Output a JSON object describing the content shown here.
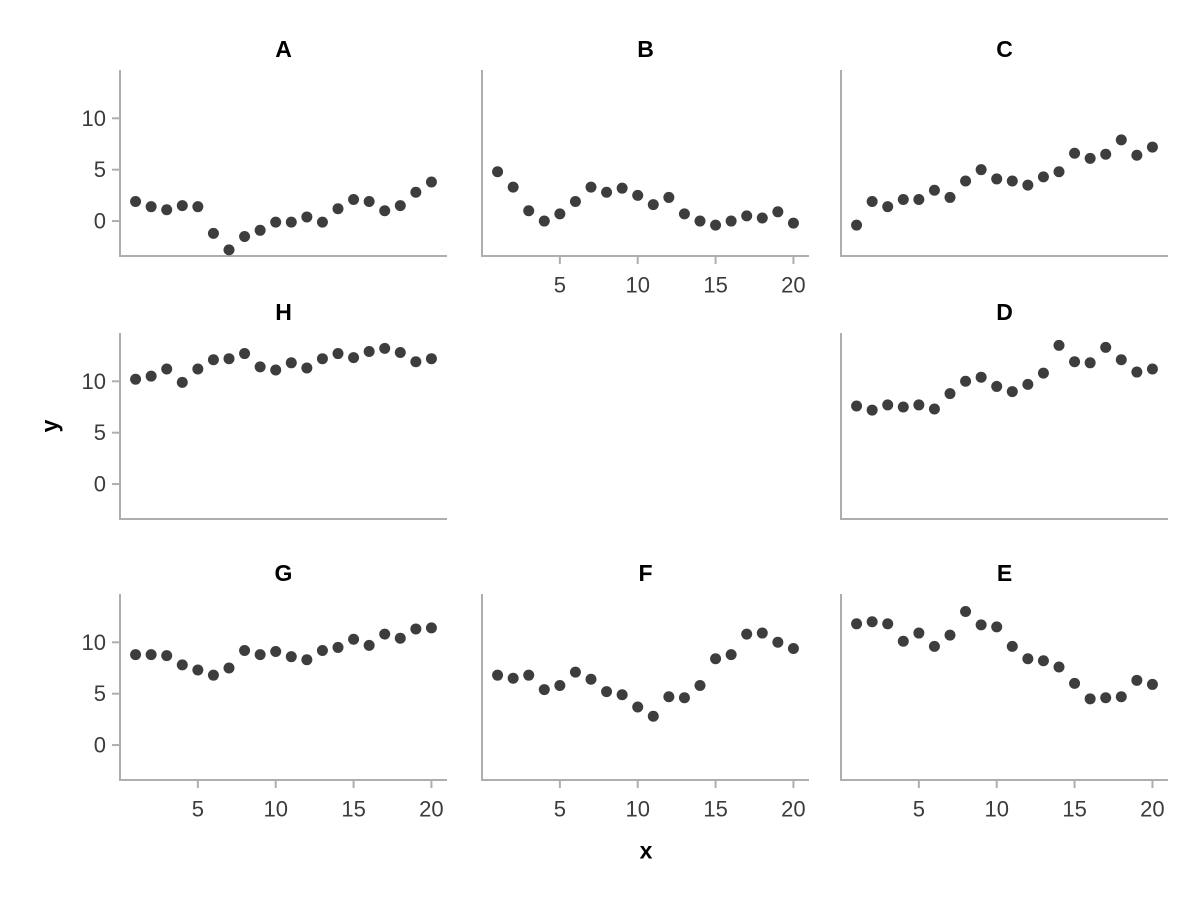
{
  "figure": {
    "background": "#ffffff",
    "point_color": "#3d3d3d",
    "axis_color": "#aeaeae",
    "tick_label_color": "#3c3c3c",
    "title_color": "#000000"
  },
  "chart_data": {
    "type": "scatter",
    "title": "",
    "xlabel": "x",
    "ylabel": "y",
    "layout_hint": "facet grid 3 rows x 3 cols, middle cell (row 2, col 2) empty; y tick labels only on left column panels; x tick labels under panels B, G, F, E; no gridlines; no legend",
    "x_domain": [
      0,
      21
    ],
    "y_domain": [
      -3.4,
      14.7
    ],
    "x_ticks": [
      5,
      10,
      15,
      20
    ],
    "y_ticks": [
      0,
      5,
      10
    ],
    "x": [
      1,
      2,
      3,
      4,
      5,
      6,
      7,
      8,
      9,
      10,
      11,
      12,
      13,
      14,
      15,
      16,
      17,
      18,
      19,
      20
    ],
    "panels": [
      {
        "label": "A",
        "grid": [
          0,
          0
        ],
        "show_x_ticks": false,
        "show_y_ticks": true,
        "y": [
          1.9,
          1.4,
          1.1,
          1.5,
          1.4,
          -1.2,
          -2.8,
          -1.5,
          -0.9,
          -0.1,
          -0.1,
          0.4,
          -0.1,
          1.2,
          2.1,
          1.9,
          1.0,
          1.5,
          2.8,
          3.8
        ]
      },
      {
        "label": "B",
        "grid": [
          0,
          1
        ],
        "show_x_ticks": true,
        "show_y_ticks": false,
        "y": [
          4.8,
          3.3,
          1.0,
          0.0,
          0.7,
          1.9,
          3.3,
          2.8,
          3.2,
          2.5,
          1.6,
          2.3,
          0.7,
          0.0,
          -0.4,
          0.0,
          0.5,
          0.3,
          0.9,
          -0.2
        ]
      },
      {
        "label": "C",
        "grid": [
          0,
          2
        ],
        "show_x_ticks": false,
        "show_y_ticks": false,
        "y": [
          -0.4,
          1.9,
          1.4,
          2.1,
          2.1,
          3.0,
          2.3,
          3.9,
          5.0,
          4.1,
          3.9,
          3.5,
          4.3,
          4.8,
          6.6,
          6.1,
          6.5,
          7.9,
          6.4,
          7.2
        ]
      },
      {
        "label": "H",
        "grid": [
          1,
          0
        ],
        "show_x_ticks": false,
        "show_y_ticks": true,
        "y": [
          10.2,
          10.5,
          11.2,
          9.9,
          11.2,
          12.1,
          12.2,
          12.7,
          11.4,
          11.1,
          11.8,
          11.3,
          12.2,
          12.7,
          12.3,
          12.9,
          13.2,
          12.8,
          11.9,
          12.2
        ]
      },
      {
        "label": "D",
        "grid": [
          1,
          2
        ],
        "show_x_ticks": false,
        "show_y_ticks": false,
        "y": [
          7.6,
          7.2,
          7.7,
          7.5,
          7.7,
          7.3,
          8.8,
          10.0,
          10.4,
          9.5,
          9.0,
          9.7,
          10.8,
          13.5,
          11.9,
          11.8,
          13.3,
          12.1,
          10.9,
          11.2
        ]
      },
      {
        "label": "G",
        "grid": [
          2,
          0
        ],
        "show_x_ticks": true,
        "show_y_ticks": true,
        "y": [
          8.8,
          8.8,
          8.7,
          7.8,
          7.3,
          6.8,
          7.5,
          9.2,
          8.8,
          9.1,
          8.6,
          8.3,
          9.2,
          9.5,
          10.3,
          9.7,
          10.8,
          10.4,
          11.3,
          11.4
        ]
      },
      {
        "label": "F",
        "grid": [
          2,
          1
        ],
        "show_x_ticks": true,
        "show_y_ticks": false,
        "y": [
          6.8,
          6.5,
          6.8,
          5.4,
          5.8,
          7.1,
          6.4,
          5.2,
          4.9,
          3.7,
          2.8,
          4.7,
          4.6,
          5.8,
          8.4,
          8.8,
          10.8,
          10.9,
          10.0,
          9.4
        ]
      },
      {
        "label": "E",
        "grid": [
          2,
          2
        ],
        "show_x_ticks": true,
        "show_y_ticks": false,
        "y": [
          11.8,
          12.0,
          11.8,
          10.1,
          10.9,
          9.6,
          10.7,
          13.0,
          11.7,
          11.5,
          9.6,
          8.4,
          8.2,
          7.6,
          6.0,
          4.5,
          4.6,
          4.7,
          6.3,
          5.9
        ]
      }
    ]
  }
}
